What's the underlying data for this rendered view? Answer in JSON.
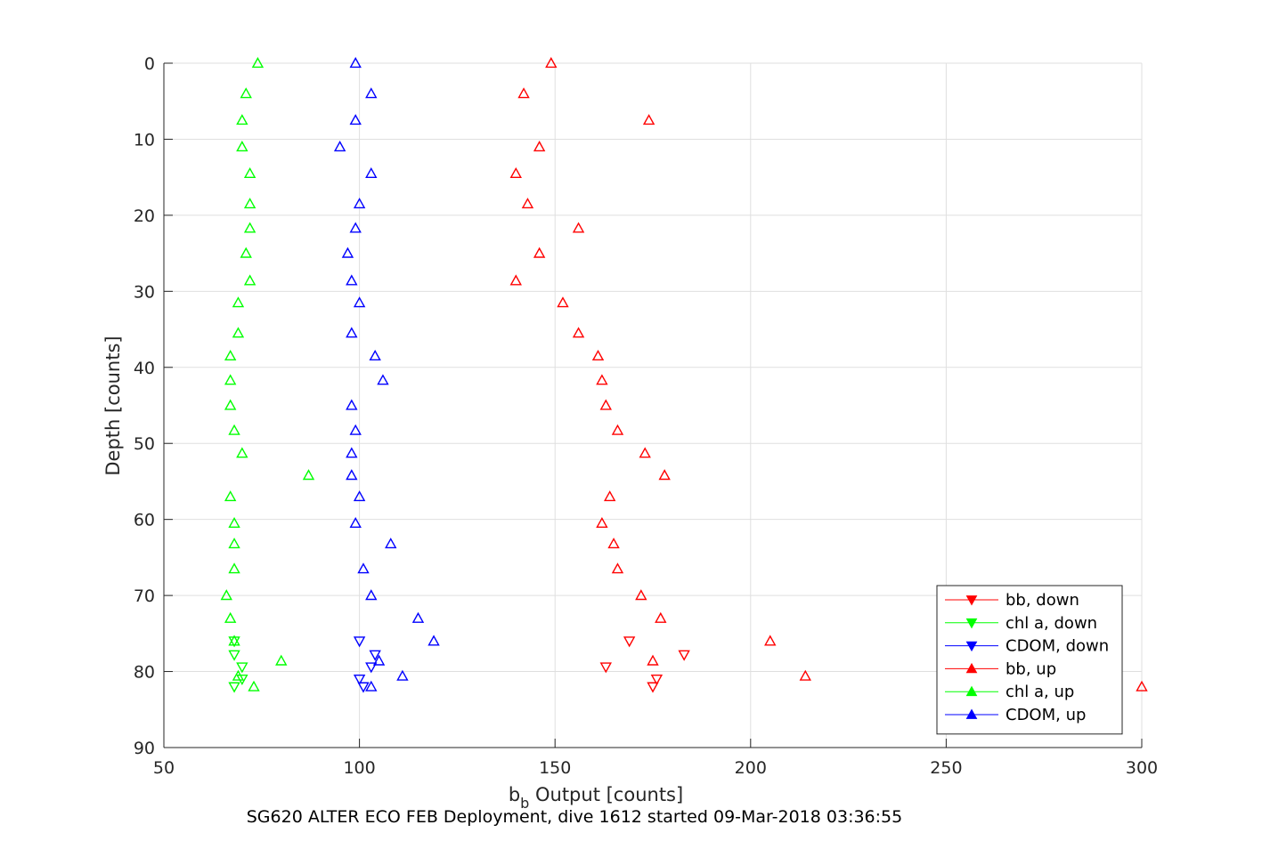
{
  "chart_data": {
    "type": "scatter",
    "title": "SG620 ALTER ECO FEB Deployment, dive 1612 started 09-Mar-2018 03:36:55",
    "xlabel_main": "b",
    "xlabel_sub": "b",
    "xlabel_rest": " Output [counts]",
    "ylabel": "Depth [counts]",
    "xlim": [
      50,
      300
    ],
    "ylim": [
      0,
      90
    ],
    "y_reversed": true,
    "grid": true,
    "legend_position": "bottom-right",
    "x_ticks": [
      50,
      100,
      150,
      200,
      250,
      300
    ],
    "y_ticks": [
      0,
      10,
      20,
      30,
      40,
      50,
      60,
      70,
      80,
      90
    ],
    "series": [
      {
        "name": "bb, down",
        "color": "#ff0000",
        "marker": "triangle-down",
        "points": [
          [
            169,
            76
          ],
          [
            183,
            77.8
          ],
          [
            163,
            79.4
          ],
          [
            176,
            81
          ],
          [
            175,
            82
          ]
        ]
      },
      {
        "name": "chl a, down",
        "color": "#00ff00",
        "marker": "triangle-down",
        "points": [
          [
            68,
            76
          ],
          [
            68,
            77.8
          ],
          [
            70,
            79.4
          ],
          [
            70,
            81
          ],
          [
            68,
            82
          ]
        ]
      },
      {
        "name": "CDOM, down",
        "color": "#0000ff",
        "marker": "triangle-down",
        "points": [
          [
            100,
            76
          ],
          [
            104,
            77.8
          ],
          [
            103,
            79.4
          ],
          [
            100,
            81
          ],
          [
            101,
            82
          ]
        ]
      },
      {
        "name": "bb, up",
        "color": "#ff0000",
        "marker": "triangle-up",
        "points": [
          [
            149,
            0
          ],
          [
            142,
            4
          ],
          [
            174,
            7.5
          ],
          [
            146,
            11
          ],
          [
            140,
            14.5
          ],
          [
            143,
            18.5
          ],
          [
            156,
            21.7
          ],
          [
            146,
            25
          ],
          [
            140,
            28.6
          ],
          [
            152,
            31.5
          ],
          [
            156,
            35.5
          ],
          [
            161,
            38.5
          ],
          [
            162,
            41.7
          ],
          [
            163,
            45
          ],
          [
            166,
            48.3
          ],
          [
            173,
            51.3
          ],
          [
            178,
            54.2
          ],
          [
            164,
            57
          ],
          [
            162,
            60.5
          ],
          [
            165,
            63.2
          ],
          [
            166,
            66.5
          ],
          [
            172,
            70
          ],
          [
            177,
            73
          ],
          [
            205,
            76
          ],
          [
            175,
            78.6
          ],
          [
            214,
            80.6
          ],
          [
            300,
            82
          ]
        ]
      },
      {
        "name": "chl a, up",
        "color": "#00ff00",
        "marker": "triangle-up",
        "points": [
          [
            74,
            0
          ],
          [
            71,
            4
          ],
          [
            70,
            7.5
          ],
          [
            70,
            11
          ],
          [
            72,
            14.5
          ],
          [
            72,
            18.5
          ],
          [
            72,
            21.7
          ],
          [
            71,
            25
          ],
          [
            72,
            28.6
          ],
          [
            69,
            31.5
          ],
          [
            69,
            35.5
          ],
          [
            67,
            38.5
          ],
          [
            67,
            41.7
          ],
          [
            67,
            45
          ],
          [
            68,
            48.3
          ],
          [
            70,
            51.3
          ],
          [
            87,
            54.2
          ],
          [
            67,
            57
          ],
          [
            68,
            60.5
          ],
          [
            68,
            63.2
          ],
          [
            68,
            66.5
          ],
          [
            66,
            70
          ],
          [
            67,
            73
          ],
          [
            68,
            76
          ],
          [
            80,
            78.6
          ],
          [
            69,
            80.6
          ],
          [
            73,
            82
          ]
        ]
      },
      {
        "name": "CDOM, up",
        "color": "#0000ff",
        "marker": "triangle-up",
        "points": [
          [
            99,
            0
          ],
          [
            103,
            4
          ],
          [
            99,
            7.5
          ],
          [
            95,
            11
          ],
          [
            103,
            14.5
          ],
          [
            100,
            18.5
          ],
          [
            99,
            21.7
          ],
          [
            97,
            25
          ],
          [
            98,
            28.6
          ],
          [
            100,
            31.5
          ],
          [
            98,
            35.5
          ],
          [
            104,
            38.5
          ],
          [
            106,
            41.7
          ],
          [
            98,
            45
          ],
          [
            99,
            48.3
          ],
          [
            98,
            51.3
          ],
          [
            98,
            54.2
          ],
          [
            100,
            57
          ],
          [
            99,
            60.5
          ],
          [
            108,
            63.2
          ],
          [
            101,
            66.5
          ],
          [
            103,
            70
          ],
          [
            115,
            73
          ],
          [
            119,
            76
          ],
          [
            105,
            78.6
          ],
          [
            111,
            80.6
          ],
          [
            103,
            82
          ]
        ]
      }
    ]
  }
}
